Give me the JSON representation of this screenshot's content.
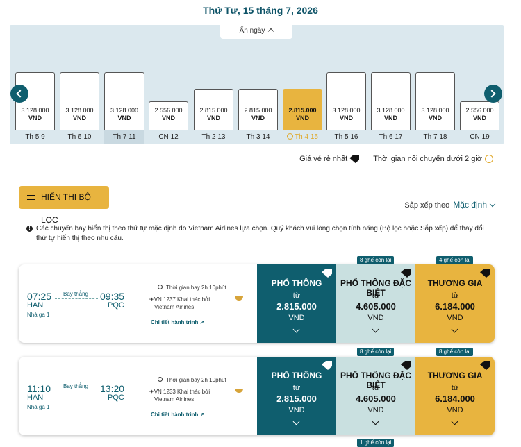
{
  "header": {
    "date": "Thứ Tư, 15 tháng 7, 2026"
  },
  "calendar": {
    "hide_label": "Ẩn ngày",
    "days": [
      {
        "price": "3.128.000",
        "currency": "VND",
        "label": "Th 5 9"
      },
      {
        "price": "3.128.000",
        "currency": "VND",
        "label": "Th 6 10"
      },
      {
        "price": "3.128.000",
        "currency": "VND",
        "label": "Th 7 11"
      },
      {
        "price": "2.556.000",
        "currency": "VND",
        "label": "CN 12"
      },
      {
        "price": "2.815.000",
        "currency": "VND",
        "label": "Th 2 13"
      },
      {
        "price": "2.815.000",
        "currency": "VND",
        "label": "Th 3 14"
      },
      {
        "price": "2.815.000",
        "currency": "VND",
        "label": "Th 4 15"
      },
      {
        "price": "3.128.000",
        "currency": "VND",
        "label": "Th 5 16"
      },
      {
        "price": "3.128.000",
        "currency": "VND",
        "label": "Th 6 17"
      },
      {
        "price": "3.128.000",
        "currency": "VND",
        "label": "Th 7 18"
      },
      {
        "price": "2.556.000",
        "currency": "VND",
        "label": "CN 19"
      }
    ]
  },
  "legend": {
    "cheapest": "Giá vé rẻ nhất",
    "connection": "Thời gian nối chuyến dưới 2 giờ"
  },
  "filter": {
    "label": "HIỂN THỊ BỘ LỌC"
  },
  "sort": {
    "label": "Sắp xếp theo",
    "value": "Mặc định"
  },
  "notice": "Các chuyến bay hiển thị theo thứ tự mặc định do Vietnam Airlines lựa chọn. Quý khách vui lòng chọn tính năng (Bộ lọc hoặc Sắp xếp) để thay đổi thứ tự hiển thị theo nhu cầu.",
  "flights": [
    {
      "dep_time": "07:25",
      "dep_code": "HAN",
      "terminal": "Nhà ga 1",
      "nonstop": "Bay thẳng",
      "arr_time": "09:35",
      "arr_code": "PQC",
      "duration": "Thời gian bay 2h 10phút",
      "flight_no": "VN 1237 Khai thác bởi",
      "operator": "Vietnam Airlines",
      "detail": "Chi tiết hành trình",
      "fares": [
        {
          "name": "PHỔ THÔNG",
          "from": "từ",
          "price": "2.815.000",
          "currency": "VND",
          "seats": ""
        },
        {
          "name": "PHỔ THÔNG ĐẶC BIỆT",
          "from": "từ",
          "price": "4.605.000",
          "currency": "VND",
          "seats": "8 ghế còn lại"
        },
        {
          "name": "THƯƠNG GIA",
          "from": "từ",
          "price": "6.184.000",
          "currency": "VND",
          "seats": "4 ghế còn lại"
        }
      ]
    },
    {
      "dep_time": "11:10",
      "dep_code": "HAN",
      "terminal": "Nhà ga 1",
      "nonstop": "Bay thẳng",
      "arr_time": "13:20",
      "arr_code": "PQC",
      "duration": "Thời gian bay 2h 10phút",
      "flight_no": "VN 1233 Khai thác bởi",
      "operator": "Vietnam Airlines",
      "detail": "Chi tiết hành trình",
      "fares": [
        {
          "name": "PHỔ THÔNG",
          "from": "từ",
          "price": "2.815.000",
          "currency": "VND",
          "seats": ""
        },
        {
          "name": "PHỔ THÔNG ĐẶC BIỆT",
          "from": "từ",
          "price": "4.605.000",
          "currency": "VND",
          "seats": "8 ghế còn lại"
        },
        {
          "name": "THƯƠNG GIA",
          "from": "từ",
          "price": "6.184.000",
          "currency": "VND",
          "seats": "8 ghế còn lại"
        }
      ]
    }
  ],
  "next_flight_seats": "1 ghế còn lại"
}
